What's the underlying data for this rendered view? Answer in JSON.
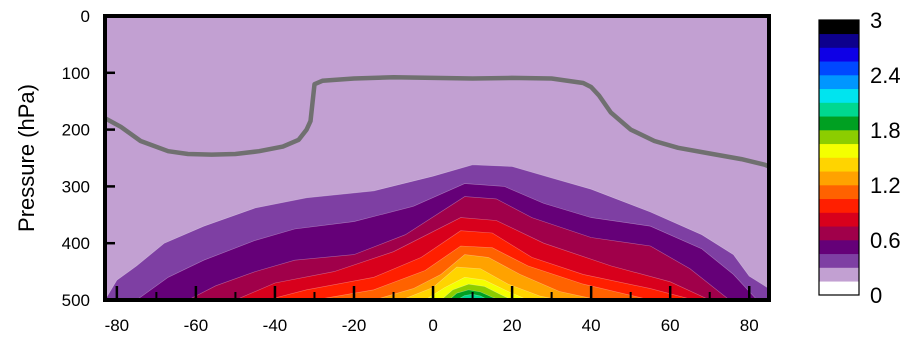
{
  "chart_data": {
    "type": "contour",
    "title": "",
    "xlabel": "",
    "ylabel": "Pressure (hPa)",
    "xlim": [
      -83,
      85
    ],
    "ylim": [
      500,
      0
    ],
    "x_ticks": [
      -80,
      -60,
      -40,
      -20,
      0,
      20,
      40,
      60,
      80
    ],
    "x_tick_labels": [
      "-80",
      "-60",
      "-40",
      "-20",
      "0",
      "20",
      "40",
      "60",
      "80"
    ],
    "y_ticks": [
      0,
      100,
      200,
      300,
      400,
      500
    ],
    "y_tick_labels": [
      "0",
      "100",
      "200",
      "300",
      "400",
      "500"
    ],
    "grid": false,
    "legend": "none",
    "colorbar": {
      "placement": "right",
      "min": 0,
      "max": 3,
      "step": 0.2,
      "tick_values": [
        0,
        0.6,
        1.2,
        1.8,
        2.4,
        3
      ],
      "tick_labels": [
        "0",
        "0.6",
        "1.2",
        "1.8",
        "2.4",
        "3"
      ],
      "colors": [
        "#ffffff",
        "#c2a0d2",
        "#7e3fa3",
        "#650078",
        "#a0004a",
        "#d8001c",
        "#ff1f00",
        "#ff6200",
        "#ffa200",
        "#ffd400",
        "#f4ff00",
        "#8ccd00",
        "#00a022",
        "#00d890",
        "#00e4ef",
        "#0096ff",
        "#0048ff",
        "#0e00e6",
        "#0d008c",
        "#000000"
      ]
    },
    "filled_contours": [
      {
        "level": 0.2,
        "points": [
          [
            -83,
            500
          ],
          [
            -80,
            465
          ],
          [
            -75,
            440
          ],
          [
            -68,
            400
          ],
          [
            -58,
            370
          ],
          [
            -45,
            338
          ],
          [
            -32,
            320
          ],
          [
            -15,
            308
          ],
          [
            0,
            282
          ],
          [
            10,
            262
          ],
          [
            20,
            265
          ],
          [
            30,
            285
          ],
          [
            40,
            305
          ],
          [
            55,
            345
          ],
          [
            68,
            385
          ],
          [
            76,
            420
          ],
          [
            80,
            458
          ],
          [
            85,
            480
          ],
          [
            85,
            500
          ]
        ]
      },
      {
        "level": 0.4,
        "points": [
          [
            -75,
            500
          ],
          [
            -67,
            460
          ],
          [
            -58,
            430
          ],
          [
            -45,
            395
          ],
          [
            -35,
            375
          ],
          [
            -20,
            362
          ],
          [
            -5,
            335
          ],
          [
            8,
            295
          ],
          [
            18,
            300
          ],
          [
            28,
            330
          ],
          [
            40,
            355
          ],
          [
            55,
            370
          ],
          [
            68,
            410
          ],
          [
            76,
            455
          ],
          [
            82,
            500
          ]
        ]
      },
      {
        "level": 0.6,
        "points": [
          [
            -62,
            500
          ],
          [
            -55,
            475
          ],
          [
            -45,
            450
          ],
          [
            -35,
            430
          ],
          [
            -20,
            420
          ],
          [
            -7,
            385
          ],
          [
            8,
            318
          ],
          [
            16,
            322
          ],
          [
            25,
            355
          ],
          [
            40,
            390
          ],
          [
            55,
            405
          ],
          [
            65,
            445
          ],
          [
            75,
            500
          ]
        ]
      },
      {
        "level": 0.8,
        "points": [
          [
            -50,
            500
          ],
          [
            -40,
            470
          ],
          [
            -25,
            450
          ],
          [
            -10,
            415
          ],
          [
            7,
            355
          ],
          [
            16,
            360
          ],
          [
            28,
            400
          ],
          [
            45,
            440
          ],
          [
            60,
            468
          ],
          [
            70,
            500
          ]
        ]
      },
      {
        "level": 1.0,
        "points": [
          [
            -42,
            500
          ],
          [
            -32,
            482
          ],
          [
            -15,
            460
          ],
          [
            -3,
            425
          ],
          [
            7,
            378
          ],
          [
            15,
            382
          ],
          [
            25,
            425
          ],
          [
            38,
            455
          ],
          [
            55,
            480
          ],
          [
            66,
            500
          ]
        ]
      },
      {
        "level": 1.2,
        "points": [
          [
            -30,
            500
          ],
          [
            -15,
            482
          ],
          [
            -2,
            448
          ],
          [
            7,
            405
          ],
          [
            15,
            408
          ],
          [
            24,
            440
          ],
          [
            38,
            472
          ],
          [
            55,
            500
          ]
        ]
      },
      {
        "level": 1.4,
        "points": [
          [
            -15,
            500
          ],
          [
            -5,
            480
          ],
          [
            2,
            455
          ],
          [
            8,
            420
          ],
          [
            14,
            425
          ],
          [
            22,
            455
          ],
          [
            32,
            485
          ],
          [
            42,
            500
          ]
        ]
      },
      {
        "level": 1.6,
        "points": [
          [
            -8,
            500
          ],
          [
            0,
            478
          ],
          [
            6,
            442
          ],
          [
            12,
            445
          ],
          [
            19,
            472
          ],
          [
            27,
            493
          ],
          [
            32,
            500
          ]
        ]
      },
      {
        "level": 1.8,
        "points": [
          [
            -2,
            500
          ],
          [
            3,
            478
          ],
          [
            8,
            460
          ],
          [
            13,
            465
          ],
          [
            19,
            485
          ],
          [
            24,
            500
          ]
        ]
      },
      {
        "level": 2.0,
        "points": [
          [
            2,
            500
          ],
          [
            5,
            482
          ],
          [
            9,
            472
          ],
          [
            13,
            476
          ],
          [
            17,
            490
          ],
          [
            20,
            500
          ]
        ]
      },
      {
        "level": 2.2,
        "points": [
          [
            4,
            500
          ],
          [
            6,
            488
          ],
          [
            9,
            482
          ],
          [
            12,
            486
          ],
          [
            15,
            495
          ],
          [
            17,
            500
          ]
        ]
      },
      {
        "level": 2.4,
        "points": [
          [
            6,
            500
          ],
          [
            8,
            492
          ],
          [
            10,
            490
          ],
          [
            12,
            493
          ],
          [
            14,
            500
          ]
        ]
      }
    ],
    "line_contour": {
      "color": "#707070",
      "points": [
        [
          -83,
          180
        ],
        [
          -79,
          195
        ],
        [
          -74,
          220
        ],
        [
          -67,
          238
        ],
        [
          -62,
          243
        ],
        [
          -56,
          244
        ],
        [
          -50,
          243
        ],
        [
          -44,
          238
        ],
        [
          -38,
          230
        ],
        [
          -34,
          218
        ],
        [
          -32,
          200
        ],
        [
          -31,
          185
        ],
        [
          -30,
          120
        ],
        [
          -28,
          114
        ],
        [
          -20,
          110
        ],
        [
          -10,
          108
        ],
        [
          0,
          109
        ],
        [
          10,
          110
        ],
        [
          20,
          109
        ],
        [
          30,
          110
        ],
        [
          38,
          118
        ],
        [
          40,
          125
        ],
        [
          42,
          140
        ],
        [
          45,
          170
        ],
        [
          50,
          200
        ],
        [
          56,
          220
        ],
        [
          62,
          232
        ],
        [
          70,
          242
        ],
        [
          78,
          252
        ],
        [
          84,
          262
        ],
        [
          85,
          265
        ]
      ]
    }
  }
}
